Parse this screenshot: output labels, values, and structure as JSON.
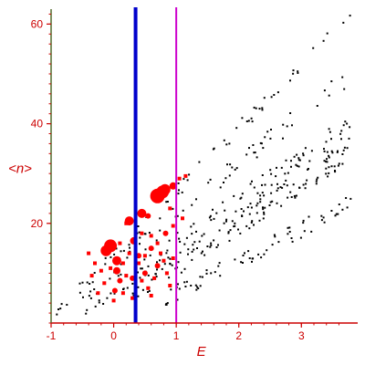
{
  "chart_data": {
    "type": "scatter",
    "xlabel": "E",
    "ylabel": "<n>",
    "xlim": [
      -1,
      3.9
    ],
    "ylim": [
      0,
      63
    ],
    "x_ticks": [
      "-1",
      "0",
      "1",
      "2",
      "3"
    ],
    "x_tick_values": [
      -1,
      0,
      1,
      2,
      3
    ],
    "y_ticks": [
      "20",
      "40",
      "60"
    ],
    "y_tick_values": [
      20,
      40,
      60
    ],
    "grid": false,
    "axis_color": "#cc0000",
    "y_axis_line_color": "#556b2f",
    "vertical_lines": [
      {
        "x": 0.35,
        "color": "#0000cc",
        "style": "thick"
      },
      {
        "x": 1.0,
        "color": "#cc00cc",
        "style": "thin"
      }
    ],
    "series": [
      {
        "marker": "dot",
        "color": "#000000",
        "bands": [
          {
            "x0": -0.95,
            "y0": 1.5,
            "x1": 3.8,
            "y1": 62,
            "n": 55,
            "spread": 1.4
          },
          {
            "x0": -0.95,
            "y0": 2.0,
            "x1": 3.8,
            "y1": 50,
            "n": 70,
            "spread": 2.0
          },
          {
            "x0": -0.5,
            "y0": 3.0,
            "x1": 3.8,
            "y1": 40,
            "n": 110,
            "spread": 2.2
          },
          {
            "x0": 0.3,
            "y0": 6.0,
            "x1": 3.8,
            "y1": 35,
            "n": 150,
            "spread": 2.5
          },
          {
            "x0": 0.8,
            "y0": 5.0,
            "x1": 3.8,
            "y1": 24,
            "n": 70,
            "spread": 1.8
          }
        ]
      },
      {
        "marker": "circle",
        "color": "#ff0000",
        "points": [
          {
            "x": -0.05,
            "y": 15.5,
            "s": 7
          },
          {
            "x": -0.12,
            "y": 14.5,
            "s": 6
          },
          {
            "x": 0.05,
            "y": 12.5,
            "s": 5
          },
          {
            "x": 0.25,
            "y": 20.5,
            "s": 5
          },
          {
            "x": 0.45,
            "y": 22.0,
            "s": 5
          },
          {
            "x": 0.55,
            "y": 21.5,
            "s": 3
          },
          {
            "x": 0.7,
            "y": 25.5,
            "s": 8
          },
          {
            "x": 0.78,
            "y": 26.3,
            "s": 7
          },
          {
            "x": 0.82,
            "y": 26.8,
            "s": 6
          },
          {
            "x": 0.95,
            "y": 27.5,
            "s": 4
          },
          {
            "x": 0.05,
            "y": 10.5,
            "s": 4
          },
          {
            "x": 0.1,
            "y": 8.5,
            "s": 3
          },
          {
            "x": 0.32,
            "y": 16.5,
            "s": 4
          },
          {
            "x": 0.5,
            "y": 10.0,
            "s": 3
          },
          {
            "x": 0.02,
            "y": 6.5,
            "s": 3
          },
          {
            "x": 0.4,
            "y": 13.5,
            "s": 3
          },
          {
            "x": 0.6,
            "y": 15.0,
            "s": 3
          },
          {
            "x": 0.3,
            "y": 9.0,
            "s": 3
          },
          {
            "x": 0.83,
            "y": 18.0,
            "s": 3
          },
          {
            "x": 0.7,
            "y": 11.5,
            "s": 3
          }
        ]
      },
      {
        "marker": "square",
        "color": "#ff0000",
        "points": [
          {
            "x": 0.65,
            "y": 25.0
          },
          {
            "x": 1.05,
            "y": 29.0
          },
          {
            "x": 1.15,
            "y": 29.5
          },
          {
            "x": 0.9,
            "y": 23.0
          },
          {
            "x": 1.1,
            "y": 21.0
          },
          {
            "x": 0.2,
            "y": 20.0
          },
          {
            "x": -0.3,
            "y": 12.0
          },
          {
            "x": -0.2,
            "y": 10.5
          },
          {
            "x": -0.35,
            "y": 9.5
          },
          {
            "x": -0.15,
            "y": 8.0
          },
          {
            "x": -0.25,
            "y": 6.0
          },
          {
            "x": 0.0,
            "y": 4.5
          },
          {
            "x": 0.15,
            "y": 12.0
          },
          {
            "x": 0.25,
            "y": 14.0
          },
          {
            "x": 0.4,
            "y": 12.0
          },
          {
            "x": 0.45,
            "y": 8.5
          },
          {
            "x": 0.55,
            "y": 7.0
          },
          {
            "x": 0.65,
            "y": 9.0
          },
          {
            "x": 0.75,
            "y": 14.0
          },
          {
            "x": 0.8,
            "y": 12.5
          },
          {
            "x": 0.85,
            "y": 10.0
          },
          {
            "x": 0.9,
            "y": 7.5
          },
          {
            "x": 0.95,
            "y": 13.0
          },
          {
            "x": 0.6,
            "y": 17.5
          },
          {
            "x": 0.7,
            "y": 16.0
          },
          {
            "x": 0.5,
            "y": 13.5
          },
          {
            "x": 0.35,
            "y": 11.0
          },
          {
            "x": 0.15,
            "y": 6.0
          },
          {
            "x": -0.05,
            "y": 11.0
          },
          {
            "x": 0.1,
            "y": 16.0
          },
          {
            "x": -0.4,
            "y": 14.0
          },
          {
            "x": 0.95,
            "y": 19.5
          },
          {
            "x": 0.6,
            "y": 5.5
          },
          {
            "x": 0.3,
            "y": 5.0
          },
          {
            "x": 0.2,
            "y": 9.5
          },
          {
            "x": 0.45,
            "y": 18.0
          }
        ]
      }
    ]
  }
}
